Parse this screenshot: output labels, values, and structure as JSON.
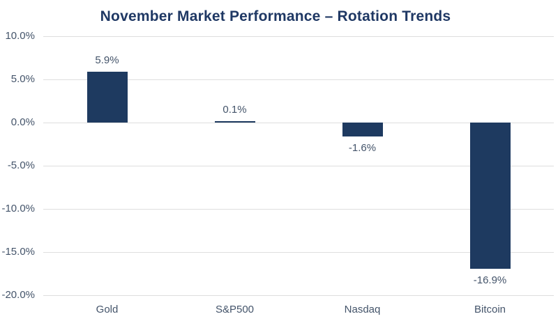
{
  "title": "November Market Performance – Rotation Trends",
  "colors": {
    "bar": "#1E3A60",
    "title": "#1F3864",
    "label": "#44546A",
    "gridline": "#DEDEDE",
    "background": "#FFFFFF"
  },
  "chart_data": {
    "type": "bar",
    "title": "November Market Performance – Rotation Trends",
    "categories": [
      "Gold",
      "S&P500",
      "Nasdaq",
      "Bitcoin"
    ],
    "values": [
      5.9,
      0.1,
      -1.6,
      -16.9
    ],
    "data_labels": [
      "5.9%",
      "0.1%",
      "-1.6%",
      "-16.9%"
    ],
    "xlabel": "",
    "ylabel": "",
    "ylim": [
      -20,
      10
    ],
    "ytick_step": 5,
    "yticks": [
      "10.0%",
      "5.0%",
      "0.0%",
      "-5.0%",
      "-10.0%",
      "-15.0%",
      "-20.0%"
    ],
    "grid": true,
    "legend": false
  }
}
